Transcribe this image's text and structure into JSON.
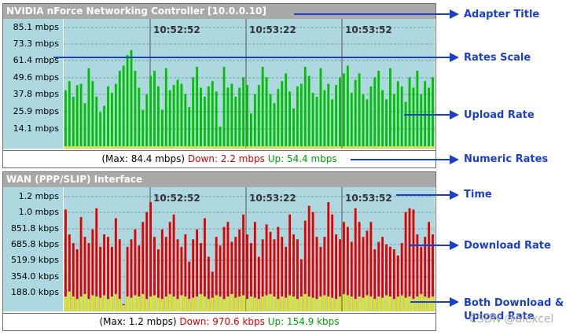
{
  "upload_panel": {
    "title": "NVIDIA nForce Networking Controller [10.0.0.10]",
    "scale": [
      "85.1 mbps",
      "73.3 mbps",
      "61.4 mbps",
      "49.6 mbps",
      "37.8 mbps",
      "25.9 mbps",
      "14.1 mbps"
    ],
    "times": [
      "10:52:52",
      "10:53:22",
      "10:53:52"
    ],
    "max_text": "(Max: 84.4 mbps)",
    "down_text": "Down: 2.2 mbps",
    "up_text": "Up: 54.4 mbps",
    "up_color": "#00c000",
    "down_color": "#e00000",
    "baseline_color": "#e8e800",
    "up_values_fraction": [
      0.45,
      0.52,
      0.4,
      0.49,
      0.5,
      0.35,
      0.62,
      0.52,
      0.4,
      0.28,
      0.33,
      0.48,
      0.43,
      0.5,
      0.6,
      0.64,
      0.72,
      0.76,
      0.6,
      0.47,
      0.3,
      0.42,
      0.56,
      0.6,
      0.48,
      0.3,
      0.62,
      0.45,
      0.49,
      0.53,
      0.5,
      0.42,
      0.32,
      0.55,
      0.63,
      0.47,
      0.4,
      0.48,
      0.52,
      0.44,
      0.17,
      0.63,
      0.47,
      0.5,
      0.4,
      0.47,
      0.55,
      0.49,
      0.27,
      0.42,
      0.49,
      0.63,
      0.55,
      0.42,
      0.35,
      0.46,
      0.52,
      0.58,
      0.44,
      0.31,
      0.48,
      0.5,
      0.63,
      0.56,
      0.43,
      0.4,
      0.62,
      0.45,
      0.5,
      0.38,
      0.49,
      0.55,
      0.58,
      0.64,
      0.43,
      0.53,
      0.58,
      0.42,
      0.38,
      0.48,
      0.55,
      0.6,
      0.45,
      0.38,
      0.62,
      0.42,
      0.52,
      0.48,
      0.36,
      0.55,
      0.47,
      0.6,
      0.42,
      0.52,
      0.47,
      0.55
    ]
  },
  "wan_panel": {
    "title": "WAN (PPP/SLIP) Interface",
    "scale": [
      "1.2 mbps",
      "1.0 mbps",
      "851.8 kbps",
      "685.8 kbps",
      "519.9 kbps",
      "354.0 kbps",
      "188.0 kbps"
    ],
    "times": [
      "10:52:52",
      "10:53:22",
      "10:53:52"
    ],
    "max_text": "(Max: 1.2 mbps)",
    "down_text": "Down: 970.6 kbps",
    "up_text": "Up: 154.9 kbps",
    "down_color": "#e00000",
    "up_color": "#e8e800",
    "down_values_fraction": [
      0.82,
      0.62,
      0.55,
      0.5,
      0.76,
      0.6,
      0.55,
      0.66,
      0.83,
      0.52,
      0.62,
      0.6,
      0.52,
      0.75,
      0.58,
      0.06,
      0.52,
      0.58,
      0.66,
      0.53,
      0.72,
      0.8,
      0.88,
      0.6,
      0.5,
      0.66,
      0.6,
      0.72,
      0.78,
      0.58,
      0.52,
      0.62,
      0.4,
      0.58,
      0.66,
      0.55,
      0.75,
      0.44,
      0.32,
      0.6,
      0.53,
      0.68,
      0.72,
      0.56,
      0.6,
      0.66,
      0.78,
      0.62,
      0.55,
      0.72,
      0.44,
      0.58,
      0.7,
      0.64,
      0.58,
      0.68,
      0.6,
      0.52,
      0.78,
      0.62,
      0.58,
      0.42,
      0.73,
      0.85,
      0.8,
      0.6,
      0.52,
      0.6,
      0.88,
      0.78,
      0.62,
      0.58,
      0.72,
      0.68,
      0.56,
      0.83,
      0.72,
      0.6,
      0.65,
      0.72,
      0.5,
      0.56,
      0.6,
      0.54,
      0.52,
      0.5,
      0.45,
      0.55,
      0.8,
      0.83,
      0.82,
      0.62,
      0.52,
      0.6,
      0.72,
      0.62
    ],
    "up_values_fraction": [
      0.12,
      0.16,
      0.12,
      0.1,
      0.12,
      0.14,
      0.1,
      0.13,
      0.12,
      0.11,
      0.13,
      0.1,
      0.12,
      0.14,
      0.1,
      0.05,
      0.12,
      0.11,
      0.13,
      0.12,
      0.14,
      0.1,
      0.12,
      0.13,
      0.11,
      0.1,
      0.12,
      0.14,
      0.12,
      0.1,
      0.13,
      0.12,
      0.1,
      0.11,
      0.12,
      0.14,
      0.12,
      0.1,
      0.11,
      0.13,
      0.12,
      0.1,
      0.12,
      0.14,
      0.11,
      0.12,
      0.13,
      0.1,
      0.12,
      0.11,
      0.1,
      0.12,
      0.13,
      0.14,
      0.12,
      0.1,
      0.12,
      0.11,
      0.13,
      0.12,
      0.1,
      0.12,
      0.14,
      0.12,
      0.11,
      0.1,
      0.12,
      0.13,
      0.12,
      0.11,
      0.1,
      0.12,
      0.14,
      0.13,
      0.12,
      0.1,
      0.12,
      0.11,
      0.13,
      0.12,
      0.1,
      0.12,
      0.11,
      0.13,
      0.12,
      0.1,
      0.12,
      0.13,
      0.11,
      0.12,
      0.1,
      0.12,
      0.14,
      0.12,
      0.11,
      0.12
    ]
  },
  "callouts": {
    "adapter_title": "Adapter Title",
    "rates_scale": "Rates Scale",
    "upload_rate": "Upload Rate",
    "numeric_rates": "Numeric Rates",
    "time": "Time",
    "download_rate": "Download Rate",
    "both_line1": "Both Download &",
    "both_line2": "Upload Rate",
    "arrow_color": "#1a3fcf"
  },
  "watermark": "CSDN @alexcel"
}
